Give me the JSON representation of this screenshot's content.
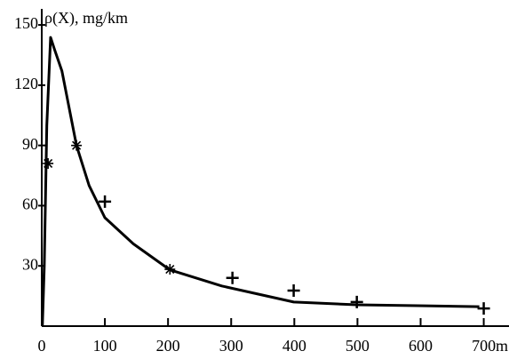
{
  "chart_data": {
    "type": "line",
    "y_label": "ρ(X),  mg/km",
    "x_label": "m",
    "xlim": [
      0,
      740
    ],
    "ylim": [
      0,
      158
    ],
    "xticks": [
      0,
      100,
      200,
      300,
      400,
      500,
      600,
      700
    ],
    "yticks": [
      30,
      60,
      90,
      120,
      150
    ],
    "series": [
      {
        "style": "line",
        "color": "#000000",
        "x": [
          1,
          4,
          8,
          14,
          20,
          32,
          55,
          75,
          100,
          145,
          203,
          285,
          399,
          499,
          595,
          693
        ],
        "values": [
          0,
          30,
          100,
          143.8,
          138,
          127,
          90,
          70,
          54,
          41,
          28,
          20,
          12,
          10.6,
          10.2,
          9.7
        ]
      },
      {
        "style": "asterisk",
        "color": "#000000",
        "x": [
          10,
          55,
          203
        ],
        "values": [
          81,
          90,
          28.3
        ]
      },
      {
        "style": "plus",
        "color": "#000000",
        "x": [
          100,
          302,
          399,
          499,
          700
        ],
        "values": [
          62,
          24,
          17.7,
          12,
          8.8
        ]
      }
    ]
  }
}
